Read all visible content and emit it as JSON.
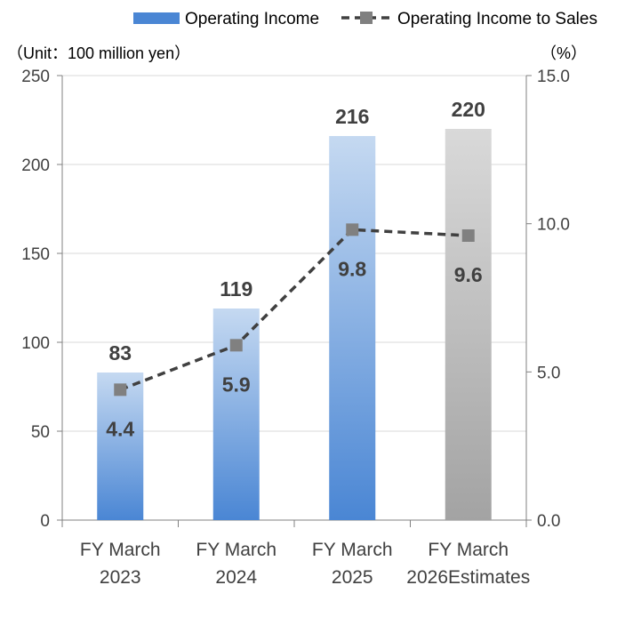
{
  "chart_data": {
    "type": "bar",
    "categories": [
      [
        "FY March",
        "2023"
      ],
      [
        "FY March",
        "2024"
      ],
      [
        "FY March",
        "2025"
      ],
      [
        "FY March",
        "2026Estimates"
      ]
    ],
    "series": [
      {
        "name": "Operating Income",
        "type": "bar",
        "axis": "left",
        "values": [
          83,
          119,
          216,
          220
        ],
        "data_labels": [
          "83",
          "119",
          "216",
          "220"
        ],
        "estimate_flags": [
          false,
          false,
          false,
          true
        ]
      },
      {
        "name": "Operating Income to Sales",
        "type": "line",
        "style": "dashed",
        "marker": "square",
        "axis": "right",
        "values": [
          4.4,
          5.9,
          9.8,
          9.6
        ],
        "data_labels": [
          "4.4",
          "5.9",
          "9.8",
          "9.6"
        ]
      }
    ],
    "y_left": {
      "unit_label": "（Unit：100 million yen）",
      "min": 0,
      "max": 250,
      "ticks": [
        0,
        50,
        100,
        150,
        200,
        250
      ],
      "tick_labels": [
        "0",
        "50",
        "100",
        "150",
        "200",
        "250"
      ]
    },
    "y_right": {
      "unit_label": "（%）",
      "min": 0,
      "max": 15,
      "ticks": [
        0,
        5,
        10,
        15
      ],
      "tick_labels": [
        "0.0",
        "5.0",
        "10.0",
        "15.0"
      ]
    },
    "grid": "horizontal",
    "legend": "top-right",
    "colors": {
      "bar_top": "#c5d9f1",
      "bar_bottom": "#4a86d4",
      "estimate_top": "#d9d9d9",
      "estimate_bottom": "#a3a3a3",
      "line": "#404040",
      "marker": "#808080",
      "grid": "#d9d9d9",
      "axis": "#808080",
      "label": "#404040",
      "tick_text": "#404040"
    }
  }
}
